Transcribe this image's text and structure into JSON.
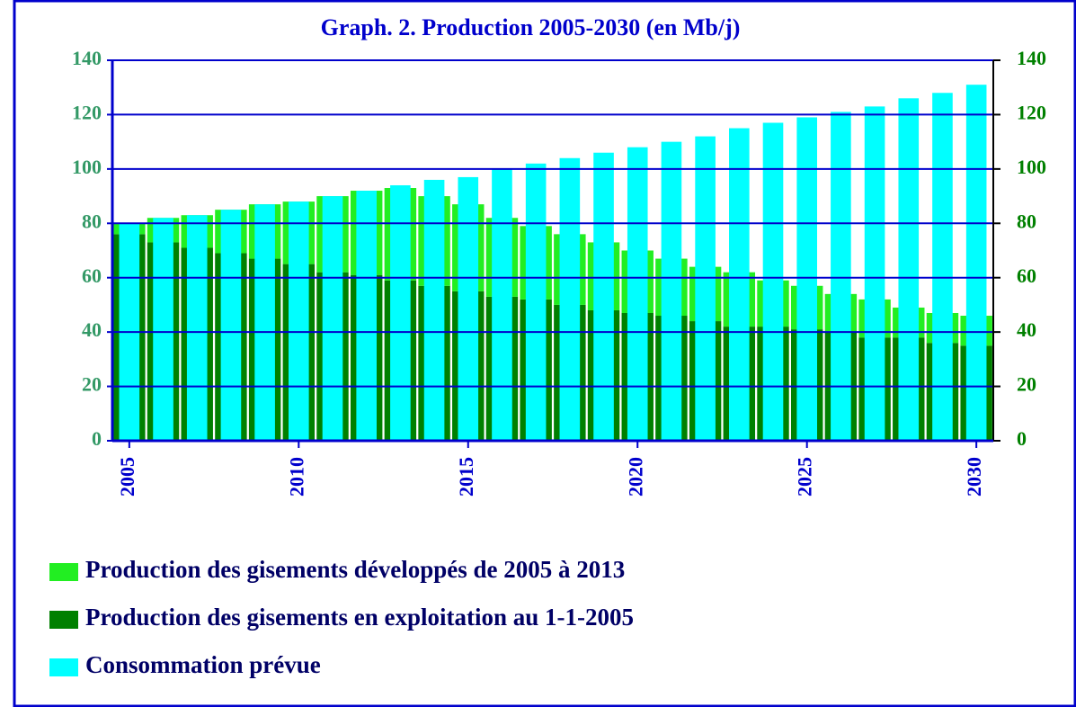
{
  "chart_data": {
    "type": "bar",
    "title": "Graph. 2. Production 2005-2030 (en Mb/j)",
    "categories": [
      "2005",
      null,
      null,
      null,
      null,
      "2010",
      null,
      null,
      null,
      null,
      "2015",
      null,
      null,
      null,
      null,
      "2020",
      null,
      null,
      null,
      null,
      "2025",
      null,
      null,
      null,
      null,
      "2030"
    ],
    "series": [
      {
        "name": "Production des gisements en exploitation au 1-1-2005",
        "color": "#008000",
        "stack": true,
        "values": [
          76,
          73,
          71,
          69,
          67,
          65,
          62,
          61,
          59,
          57,
          55,
          53,
          52,
          50,
          48,
          47,
          46,
          44,
          42,
          42,
          41,
          40,
          38,
          38,
          36,
          35
        ]
      },
      {
        "name": "Production des gisements développés de 2005 à 2013",
        "color": "#22ee22",
        "stack": true,
        "values": [
          4,
          9,
          12,
          16,
          20,
          23,
          28,
          31,
          34,
          33,
          32,
          29,
          27,
          26,
          25,
          23,
          21,
          20,
          20,
          17,
          16,
          14,
          14,
          11,
          11,
          11
        ]
      },
      {
        "name": "Consommation prévue",
        "color": "#00ffff",
        "stack": false,
        "values": [
          80,
          82,
          83,
          85,
          87,
          88,
          90,
          92,
          94,
          96,
          97,
          100,
          102,
          104,
          106,
          108,
          110,
          112,
          115,
          117,
          119,
          121,
          123,
          126,
          128,
          131
        ]
      }
    ],
    "legend_order": [
      1,
      0,
      2
    ],
    "ylim": [
      0,
      140
    ],
    "yticks": [
      0,
      20,
      40,
      60,
      80,
      100,
      120,
      140
    ],
    "y2lim": [
      0,
      140
    ],
    "y2ticks": [
      0,
      20,
      40,
      60,
      80,
      100,
      120,
      140
    ],
    "grid": true
  }
}
